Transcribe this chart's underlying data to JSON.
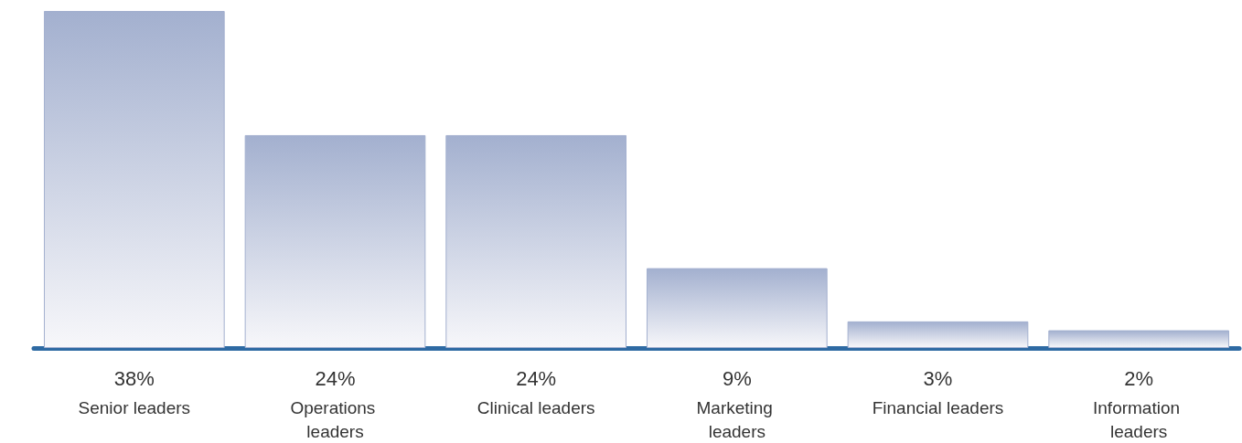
{
  "chart_data": {
    "type": "bar",
    "categories": [
      "Senior leaders",
      "Operations leaders",
      "Clinical leaders",
      "Marketing leaders",
      "Financial leaders",
      "Information leaders"
    ],
    "values": [
      38,
      24,
      24,
      9,
      3,
      2
    ],
    "value_labels": [
      "38%",
      "24%",
      "24%",
      "9%",
      "3%",
      "2%"
    ],
    "color": "#a3b0cf",
    "grid": false
  }
}
